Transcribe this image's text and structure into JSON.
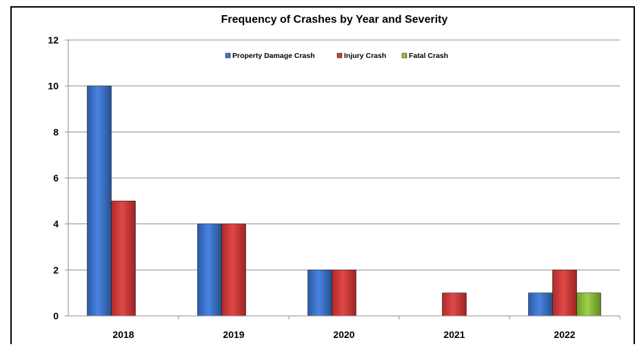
{
  "chart_data": {
    "type": "bar",
    "title": "Frequency of Crashes by Year and Severity",
    "xlabel": "",
    "ylabel": "",
    "categories": [
      "2018",
      "2019",
      "2020",
      "2021",
      "2022"
    ],
    "series": [
      {
        "name": "Property Damage Crash",
        "values": [
          10,
          4,
          2,
          0,
          1
        ],
        "color": "#3a6fc4"
      },
      {
        "name": "Injury Crash",
        "values": [
          5,
          4,
          2,
          1,
          2
        ],
        "color": "#d13b3b"
      },
      {
        "name": "Fatal Crash",
        "values": [
          0,
          0,
          0,
          0,
          1
        ],
        "color": "#8cbf3a"
      }
    ],
    "ylim": [
      0,
      12
    ],
    "yticks": [
      0,
      2,
      4,
      6,
      8,
      10,
      12
    ],
    "grid": "horizontal",
    "legend_position": "top-center"
  }
}
